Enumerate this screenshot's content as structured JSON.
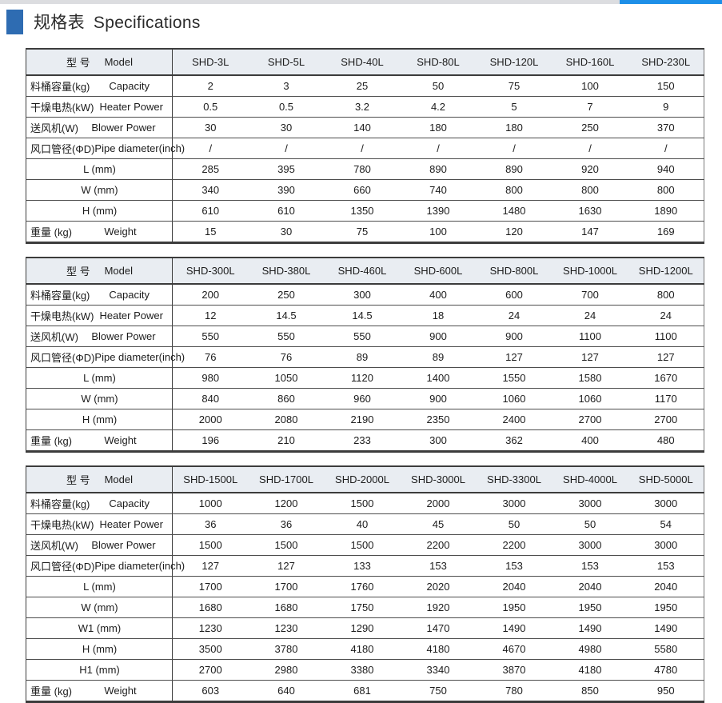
{
  "page": {
    "title_zh": "规格表",
    "title_en": "Specifications"
  },
  "colors": {
    "topbar_gray": "#dcdde0",
    "topbar_accent": "#1d8fe8",
    "title_square": "#2e6cb2",
    "table_header_bg": "#e9edf2"
  },
  "header_labels": {
    "model_zh": "型 号",
    "model_en": "Model"
  },
  "tables": [
    {
      "models": [
        "SHD-3L",
        "SHD-5L",
        "SHD-40L",
        "SHD-80L",
        "SHD-120L",
        "SHD-160L",
        "SHD-230L"
      ],
      "rows": [
        {
          "type": "split",
          "zh": "料桶容量(kg)",
          "en": "Capacity",
          "values": [
            "2",
            "3",
            "25",
            "50",
            "75",
            "100",
            "150"
          ]
        },
        {
          "type": "split",
          "zh": "干燥电热(kW)",
          "en": "Heater Power",
          "values": [
            "0.5",
            "0.5",
            "3.2",
            "4.2",
            "5",
            "7",
            "9"
          ]
        },
        {
          "type": "split",
          "zh": "送风机(W)",
          "en": "Blower Power",
          "values": [
            "30",
            "30",
            "140",
            "180",
            "180",
            "250",
            "370"
          ]
        },
        {
          "type": "split",
          "zh": "风口管径(ΦD)",
          "en": "Pipe diameter(inch)",
          "values": [
            "/",
            "/",
            "/",
            "/",
            "/",
            "/",
            "/"
          ]
        },
        {
          "type": "center",
          "zh": "",
          "en": "L  (mm)",
          "values": [
            "285",
            "395",
            "780",
            "890",
            "890",
            "920",
            "940"
          ]
        },
        {
          "type": "center",
          "zh": "",
          "en": "W (mm)",
          "values": [
            "340",
            "390",
            "660",
            "740",
            "800",
            "800",
            "800"
          ]
        },
        {
          "type": "center",
          "zh": "",
          "en": "H  (mm)",
          "values": [
            "610",
            "610",
            "1350",
            "1390",
            "1480",
            "1630",
            "1890"
          ]
        },
        {
          "type": "split",
          "zh": "重量 (kg)",
          "en": "Weight",
          "values": [
            "15",
            "30",
            "75",
            "100",
            "120",
            "147",
            "169"
          ]
        }
      ]
    },
    {
      "models": [
        "SHD-300L",
        "SHD-380L",
        "SHD-460L",
        "SHD-600L",
        "SHD-800L",
        "SHD-1000L",
        "SHD-1200L"
      ],
      "rows": [
        {
          "type": "split",
          "zh": "料桶容量(kg)",
          "en": "Capacity",
          "values": [
            "200",
            "250",
            "300",
            "400",
            "600",
            "700",
            "800"
          ]
        },
        {
          "type": "split",
          "zh": "干燥电热(kW)",
          "en": "Heater Power",
          "values": [
            "12",
            "14.5",
            "14.5",
            "18",
            "24",
            "24",
            "24"
          ]
        },
        {
          "type": "split",
          "zh": "送风机(W)",
          "en": "Blower Power",
          "values": [
            "550",
            "550",
            "550",
            "900",
            "900",
            "1100",
            "1100"
          ]
        },
        {
          "type": "split",
          "zh": "风口管径(ΦD)",
          "en": "Pipe diameter(inch)",
          "values": [
            "76",
            "76",
            "89",
            "89",
            "127",
            "127",
            "127"
          ]
        },
        {
          "type": "center",
          "zh": "",
          "en": "L  (mm)",
          "values": [
            "980",
            "1050",
            "1120",
            "1400",
            "1550",
            "1580",
            "1670"
          ]
        },
        {
          "type": "center",
          "zh": "",
          "en": "W (mm)",
          "values": [
            "840",
            "860",
            "960",
            "900",
            "1060",
            "1060",
            "1170"
          ]
        },
        {
          "type": "center",
          "zh": "",
          "en": "H  (mm)",
          "values": [
            "2000",
            "2080",
            "2190",
            "2350",
            "2400",
            "2700",
            "2700"
          ]
        },
        {
          "type": "split",
          "zh": "重量 (kg)",
          "en": "Weight",
          "values": [
            "196",
            "210",
            "233",
            "300",
            "362",
            "400",
            "480"
          ]
        }
      ]
    },
    {
      "models": [
        "SHD-1500L",
        "SHD-1700L",
        "SHD-2000L",
        "SHD-3000L",
        "SHD-3300L",
        "SHD-4000L",
        "SHD-5000L"
      ],
      "rows": [
        {
          "type": "split",
          "zh": "料桶容量(kg)",
          "en": "Capacity",
          "values": [
            "1000",
            "1200",
            "1500",
            "2000",
            "3000",
            "3000",
            "3000"
          ]
        },
        {
          "type": "split",
          "zh": "干燥电热(kW)",
          "en": "Heater Power",
          "values": [
            "36",
            "36",
            "40",
            "45",
            "50",
            "50",
            "54"
          ]
        },
        {
          "type": "split",
          "zh": "送风机(W)",
          "en": "Blower Power",
          "values": [
            "1500",
            "1500",
            "1500",
            "2200",
            "2200",
            "3000",
            "3000"
          ]
        },
        {
          "type": "split",
          "zh": "风口管径(ΦD)",
          "en": "Pipe diameter(inch)",
          "values": [
            "127",
            "127",
            "133",
            "153",
            "153",
            "153",
            "153"
          ]
        },
        {
          "type": "center",
          "zh": "",
          "en": "L  (mm)",
          "values": [
            "1700",
            "1700",
            "1760",
            "2020",
            "2040",
            "2040",
            "2040"
          ]
        },
        {
          "type": "center",
          "zh": "",
          "en": "W (mm)",
          "values": [
            "1680",
            "1680",
            "1750",
            "1920",
            "1950",
            "1950",
            "1950"
          ]
        },
        {
          "type": "center",
          "zh": "",
          "en": "W1  (mm)",
          "values": [
            "1230",
            "1230",
            "1290",
            "1470",
            "1490",
            "1490",
            "1490"
          ]
        },
        {
          "type": "center",
          "zh": "",
          "en": "H (mm)",
          "values": [
            "3500",
            "3780",
            "4180",
            "4180",
            "4670",
            "4980",
            "5580"
          ]
        },
        {
          "type": "center",
          "zh": "",
          "en": "H1  (mm)",
          "values": [
            "2700",
            "2980",
            "3380",
            "3340",
            "3870",
            "4180",
            "4780"
          ]
        },
        {
          "type": "split",
          "zh": "重量 (kg)",
          "en": "Weight",
          "values": [
            "603",
            "640",
            "681",
            "750",
            "780",
            "850",
            "950"
          ]
        }
      ]
    }
  ]
}
